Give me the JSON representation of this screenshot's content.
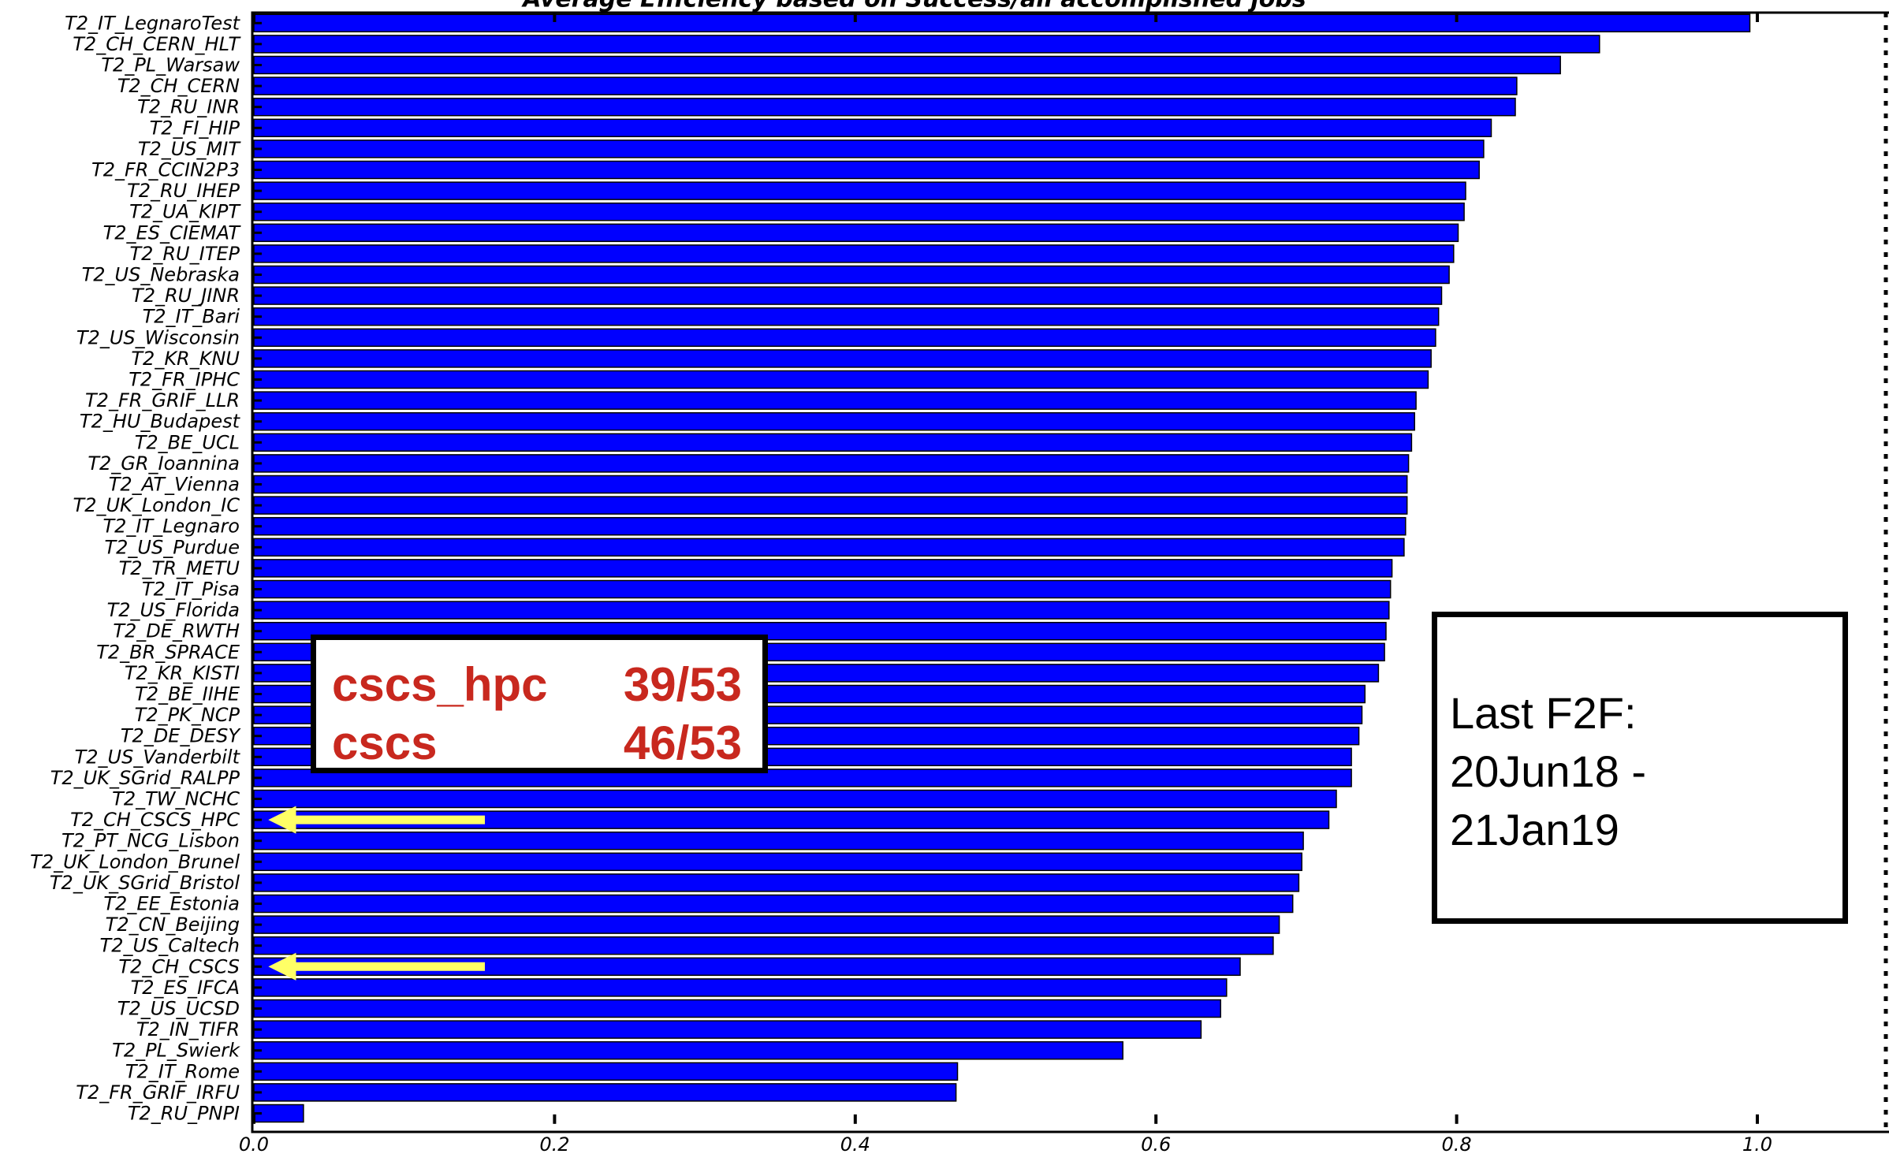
{
  "chart_data": {
    "type": "bar",
    "orientation": "horizontal",
    "title": "Average Efficiency based on Success/all accomplished jobs",
    "categories": [
      "T2_IT_LegnaroTest",
      "T2_CH_CERN_HLT",
      "T2_PL_Warsaw",
      "T2_CH_CERN",
      "T2_RU_INR",
      "T2_FI_HIP",
      "T2_US_MIT",
      "T2_FR_CCIN2P3",
      "T2_RU_IHEP",
      "T2_UA_KIPT",
      "T2_ES_CIEMAT",
      "T2_RU_ITEP",
      "T2_US_Nebraska",
      "T2_RU_JINR",
      "T2_IT_Bari",
      "T2_US_Wisconsin",
      "T2_KR_KNU",
      "T2_FR_IPHC",
      "T2_FR_GRIF_LLR",
      "T2_HU_Budapest",
      "T2_BE_UCL",
      "T2_GR_Ioannina",
      "T2_AT_Vienna",
      "T2_UK_London_IC",
      "T2_IT_Legnaro",
      "T2_US_Purdue",
      "T2_TR_METU",
      "T2_IT_Pisa",
      "T2_US_Florida",
      "T2_DE_RWTH",
      "T2_BR_SPRACE",
      "T2_KR_KISTI",
      "T2_BE_IIHE",
      "T2_PK_NCP",
      "T2_DE_DESY",
      "T2_US_Vanderbilt",
      "T2_UK_SGrid_RALPP",
      "T2_TW_NCHC",
      "T2_CH_CSCS_HPC",
      "T2_PT_NCG_Lisbon",
      "T2_UK_London_Brunel",
      "T2_UK_SGrid_Bristol",
      "T2_EE_Estonia",
      "T2_CN_Beijing",
      "T2_US_Caltech",
      "T2_CH_CSCS",
      "T2_ES_IFCA",
      "T2_US_UCSD",
      "T2_IN_TIFR",
      "T2_PL_Swierk",
      "T2_IT_Rome",
      "T2_FR_GRIF_IRFU",
      "T2_RU_PNPI"
    ],
    "values": [
      0.995,
      0.895,
      0.869,
      0.84,
      0.839,
      0.823,
      0.818,
      0.815,
      0.806,
      0.805,
      0.801,
      0.798,
      0.795,
      0.79,
      0.788,
      0.786,
      0.783,
      0.781,
      0.773,
      0.772,
      0.77,
      0.768,
      0.767,
      0.767,
      0.766,
      0.765,
      0.757,
      0.756,
      0.755,
      0.753,
      0.752,
      0.748,
      0.739,
      0.737,
      0.735,
      0.73,
      0.73,
      0.72,
      0.715,
      0.698,
      0.697,
      0.695,
      0.691,
      0.682,
      0.678,
      0.656,
      0.647,
      0.643,
      0.63,
      0.578,
      0.468,
      0.467,
      0.033
    ],
    "xlim": [
      0.0,
      1.08
    ],
    "xticks": [
      "0.0",
      "0.2",
      "0.4",
      "0.6",
      "0.8",
      "1.0"
    ],
    "xtick_values": [
      0.0,
      0.2,
      0.4,
      0.6,
      0.8,
      1.0
    ],
    "bar_color": "#0000ff",
    "highlighted": [
      "T2_CH_CSCS_HPC",
      "T2_CH_CSCS"
    ],
    "highlight_color": "#ffff66"
  },
  "score_box": {
    "rows": [
      {
        "name": "cscs_hpc",
        "value": "39/53"
      },
      {
        "name": "cscs",
        "value": "46/53"
      }
    ],
    "color": "#c8281e"
  },
  "note_box": {
    "lines": [
      "Last F2F:",
      "20Jun18 -",
      "21Jan19"
    ]
  }
}
